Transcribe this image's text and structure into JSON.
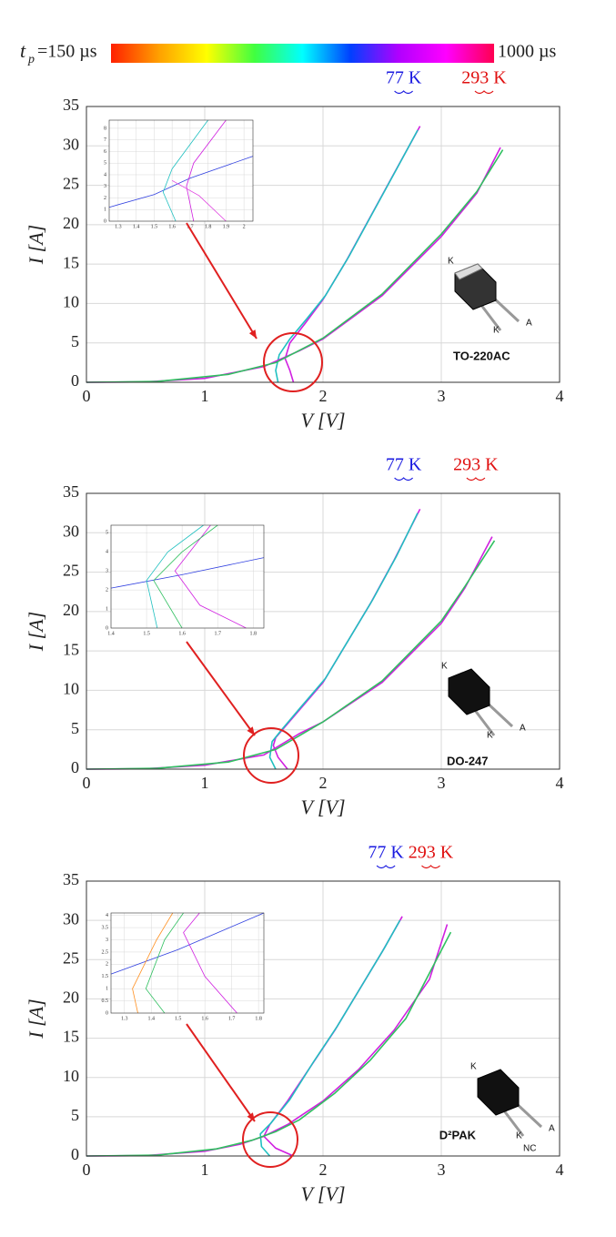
{
  "colorbar": {
    "symbol": "t",
    "subscript": "p",
    "min_label": "=150 µs",
    "max_label": "1000 µs",
    "colors": [
      "#ff2000",
      "#ffa000",
      "#ffff00",
      "#40ff40",
      "#00ffff",
      "#0040ff",
      "#b000ff",
      "#ff00ff",
      "#ff0050"
    ]
  },
  "chart_data": [
    {
      "type": "line",
      "xlabel": "V [V]",
      "ylabel": "I [A]",
      "xlim": [
        0,
        4
      ],
      "ylim": [
        0,
        35
      ],
      "xticks": [
        0,
        1,
        2,
        3,
        4
      ],
      "yticks": [
        0,
        5,
        10,
        15,
        20,
        25,
        30,
        35
      ],
      "grid": true,
      "series": [
        {
          "color": "#d020e0",
          "x": [
            1.75,
            1.72,
            1.68,
            1.72,
            1.85,
            2.0,
            2.2,
            2.4,
            2.6,
            2.82
          ],
          "values": [
            0,
            1.5,
            3,
            5,
            7.5,
            10.5,
            15.5,
            21,
            26.5,
            32.5
          ]
        },
        {
          "color": "#20c0c0",
          "x": [
            1.62,
            1.6,
            1.63,
            1.72,
            1.86,
            2.02,
            2.22,
            2.42,
            2.62,
            2.8
          ],
          "values": [
            0,
            1.5,
            3.5,
            5.5,
            8,
            11,
            16,
            21.5,
            27,
            32
          ]
        },
        {
          "color": "#d020e0",
          "x": [
            0,
            0.5,
            1,
            1.5,
            1.8,
            2,
            2.5,
            3,
            3.3,
            3.5
          ],
          "values": [
            0,
            0.05,
            0.5,
            2,
            4,
            5.5,
            11,
            18.5,
            24,
            29.8
          ]
        },
        {
          "color": "#30c060",
          "x": [
            0,
            0.6,
            1.2,
            1.6,
            2,
            2.5,
            3,
            3.3,
            3.52
          ],
          "values": [
            0,
            0.1,
            1,
            2.5,
            5.6,
            11.2,
            18.8,
            24.2,
            29.5
          ]
        }
      ],
      "annotations": [
        {
          "text": "77 K",
          "color": "#1a1ae0"
        },
        {
          "text": "293 K",
          "color": "#e01010"
        }
      ],
      "package": {
        "name": "TO-220AC",
        "pins": [
          "K",
          "K",
          "A"
        ]
      },
      "inset": {
        "type": "line",
        "xlim": [
          1.25,
          2.05
        ],
        "ylim": [
          0,
          8.7
        ],
        "xticks": [
          1.3,
          1.4,
          1.5,
          1.6,
          1.7,
          1.8,
          1.9,
          2
        ],
        "yticks": [
          0,
          1,
          2,
          3,
          4,
          5,
          6,
          7,
          8
        ],
        "grid": true,
        "series": [
          {
            "color": "#3040e0",
            "x": [
              1.25,
              1.5,
              1.7,
              2.05
            ],
            "values": [
              1.2,
              2.3,
              3.7,
              5.6
            ]
          },
          {
            "color": "#d020e0",
            "x": [
              1.72,
              1.68,
              1.72,
              1.9
            ],
            "values": [
              0,
              3,
              5,
              8.7
            ]
          },
          {
            "color": "#20c0c0",
            "x": [
              1.62,
              1.55,
              1.6,
              1.8
            ],
            "values": [
              0,
              2.5,
              4.5,
              8.7
            ]
          },
          {
            "color": "#e040e0",
            "x": [
              1.9,
              1.75,
              1.6
            ],
            "values": [
              0,
              2.2,
              3.5
            ]
          }
        ]
      }
    },
    {
      "type": "line",
      "xlabel": "V [V]",
      "ylabel": "I [A]",
      "xlim": [
        0,
        4
      ],
      "ylim": [
        0,
        35
      ],
      "xticks": [
        0,
        1,
        2,
        3,
        4
      ],
      "yticks": [
        0,
        5,
        10,
        15,
        20,
        25,
        30,
        35
      ],
      "grid": true,
      "series": [
        {
          "color": "#d020e0",
          "x": [
            1.7,
            1.62,
            1.58,
            1.6,
            1.8,
            2.0,
            2.2,
            2.4,
            2.6,
            2.82
          ],
          "values": [
            0,
            1.5,
            3,
            4,
            7.5,
            11,
            16,
            21,
            26.5,
            33
          ]
        },
        {
          "color": "#20c0c0",
          "x": [
            1.6,
            1.55,
            1.57,
            1.65,
            1.82,
            2.02,
            2.22,
            2.42,
            2.62,
            2.8
          ],
          "values": [
            0,
            1.5,
            3.5,
            5,
            8,
            11.5,
            16.5,
            21.5,
            27,
            32.5
          ]
        },
        {
          "color": "#d020e0",
          "x": [
            0,
            0.5,
            1,
            1.5,
            1.8,
            2,
            2.5,
            3,
            3.2,
            3.43
          ],
          "values": [
            0,
            0.05,
            0.5,
            1.8,
            4.5,
            6,
            11,
            18.5,
            23,
            29.5
          ]
        },
        {
          "color": "#30c060",
          "x": [
            0,
            0.6,
            1.2,
            1.6,
            2,
            2.5,
            3,
            3.2,
            3.45
          ],
          "values": [
            0,
            0.1,
            0.9,
            2.5,
            6,
            11.2,
            18.8,
            23.2,
            29
          ]
        }
      ],
      "annotations": [
        {
          "text": "77 K",
          "color": "#1a1ae0"
        },
        {
          "text": "293 K",
          "color": "#e01010"
        }
      ],
      "package": {
        "name": "DO-247",
        "pins": [
          "K",
          "K",
          "A"
        ]
      },
      "inset": {
        "type": "line",
        "xlim": [
          1.4,
          1.83
        ],
        "ylim": [
          0,
          5.4
        ],
        "xticks": [
          1.4,
          1.5,
          1.6,
          1.7,
          1.8
        ],
        "yticks": [
          0,
          1,
          2,
          3,
          4,
          5
        ],
        "grid": true,
        "series": [
          {
            "color": "#3040e0",
            "x": [
              1.4,
              1.6,
              1.83
            ],
            "values": [
              2.1,
              2.8,
              3.7
            ]
          },
          {
            "color": "#d020e0",
            "x": [
              1.78,
              1.65,
              1.58,
              1.68
            ],
            "values": [
              0,
              1.2,
              3,
              5.4
            ]
          },
          {
            "color": "#30c060",
            "x": [
              1.6,
              1.52,
              1.6,
              1.7
            ],
            "values": [
              0,
              2.5,
              4,
              5.4
            ]
          },
          {
            "color": "#20c0c0",
            "x": [
              1.53,
              1.5,
              1.56,
              1.66
            ],
            "values": [
              0,
              2.5,
              4,
              5.4
            ]
          }
        ]
      }
    },
    {
      "type": "line",
      "xlabel": "V [V]",
      "ylabel": "I [A]",
      "xlim": [
        0,
        4
      ],
      "ylim": [
        0,
        35
      ],
      "xticks": [
        0,
        1,
        2,
        3,
        4
      ],
      "yticks": [
        0,
        5,
        10,
        15,
        20,
        25,
        30,
        35
      ],
      "grid": true,
      "series": [
        {
          "color": "#d020e0",
          "x": [
            1.75,
            1.6,
            1.5,
            1.55,
            1.7,
            1.9,
            2.1,
            2.3,
            2.5,
            2.67
          ],
          "values": [
            0,
            1,
            2.5,
            4,
            7,
            11.5,
            16,
            21,
            26,
            30.5
          ]
        },
        {
          "color": "#20c0c0",
          "x": [
            1.55,
            1.48,
            1.47,
            1.56,
            1.72,
            1.92,
            2.12,
            2.32,
            2.52,
            2.65
          ],
          "values": [
            0,
            1.2,
            2.8,
            4.2,
            7.2,
            12,
            16.5,
            21.5,
            26.5,
            30
          ]
        },
        {
          "color": "#d020e0",
          "x": [
            0,
            0.5,
            1,
            1.3,
            1.5,
            1.7,
            2,
            2.3,
            2.6,
            2.9,
            3.05
          ],
          "values": [
            0,
            0.05,
            0.6,
            1.5,
            2.5,
            4,
            7,
            11,
            16,
            22.5,
            29.5
          ]
        },
        {
          "color": "#30c060",
          "x": [
            0,
            0.6,
            1.1,
            1.4,
            1.6,
            1.8,
            2.1,
            2.4,
            2.7,
            3.08
          ],
          "values": [
            0,
            0.1,
            0.9,
            2,
            3.1,
            4.6,
            8,
            12.2,
            17.5,
            28.5
          ]
        }
      ],
      "annotations": [
        {
          "text": "77 K",
          "color": "#1a1ae0"
        },
        {
          "text": "293 K",
          "color": "#e01010"
        }
      ],
      "package": {
        "name": "D²PAK",
        "pins": [
          "K",
          "K",
          "A",
          "NC"
        ]
      },
      "inset": {
        "type": "line",
        "xlim": [
          1.25,
          1.82
        ],
        "ylim": [
          0,
          4.1
        ],
        "xticks": [
          1.3,
          1.4,
          1.5,
          1.6,
          1.7,
          1.8
        ],
        "yticks": [
          0,
          0.5,
          1,
          1.5,
          2,
          2.5,
          3,
          3.5,
          4
        ],
        "grid": true,
        "series": [
          {
            "color": "#3040e0",
            "x": [
              1.25,
              1.5,
              1.82
            ],
            "values": [
              1.6,
              2.6,
              4.1
            ]
          },
          {
            "color": "#d020e0",
            "x": [
              1.72,
              1.6,
              1.52,
              1.58
            ],
            "values": [
              0,
              1.5,
              3.3,
              4.1
            ]
          },
          {
            "color": "#30c060",
            "x": [
              1.45,
              1.38,
              1.45,
              1.52
            ],
            "values": [
              0,
              1,
              3,
              4.1
            ]
          },
          {
            "color": "#ff9020",
            "x": [
              1.35,
              1.33,
              1.42,
              1.48
            ],
            "values": [
              0,
              1,
              3,
              4.1
            ]
          }
        ]
      }
    }
  ]
}
